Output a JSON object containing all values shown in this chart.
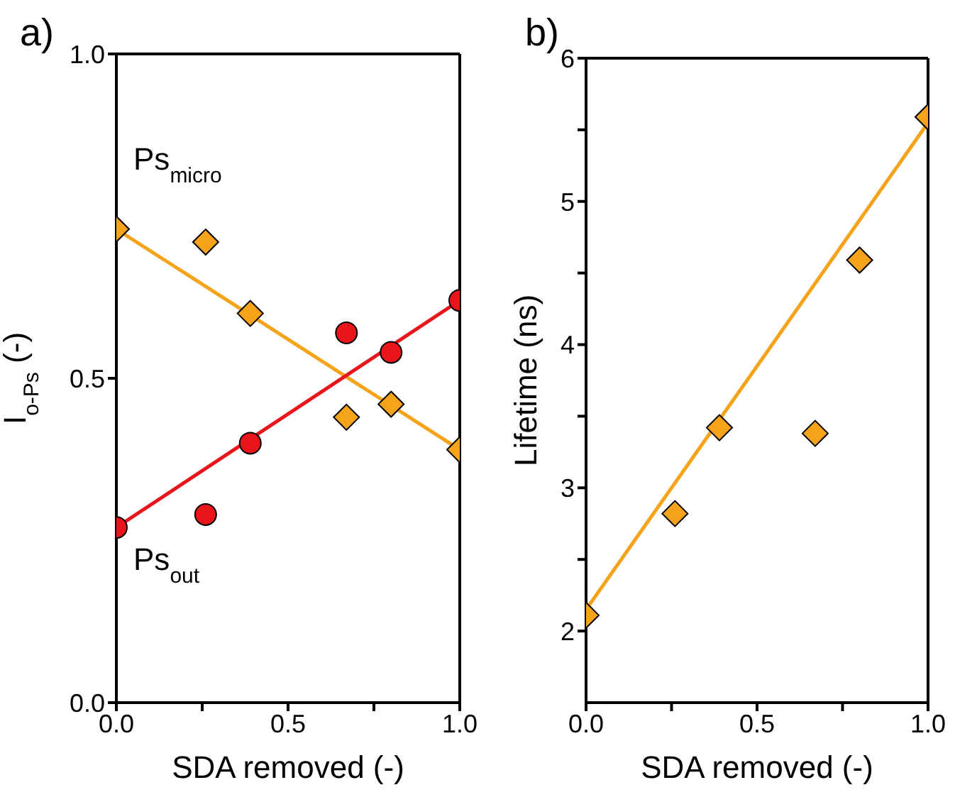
{
  "chart_data": [
    {
      "type": "scatter",
      "title": "a)",
      "xlabel": "SDA removed (-)",
      "ylabel": "I$_{o-Ps}$ (-)",
      "xlim": [
        0,
        1
      ],
      "ylim": [
        0,
        1
      ],
      "xticks": [
        {
          "value": 0,
          "label": "0.0"
        },
        {
          "value": 0.25,
          "label": null
        },
        {
          "value": 0.5,
          "label": "0.5"
        },
        {
          "value": 0.75,
          "label": null
        },
        {
          "value": 1,
          "label": "1.0"
        }
      ],
      "yticks": [
        {
          "value": 0,
          "label": "0.0"
        },
        {
          "value": 0.5,
          "label": "0.5"
        },
        {
          "value": 1,
          "label": "1.0"
        }
      ],
      "series": [
        {
          "type": "line",
          "color": "#f5a31a",
          "marker": "none",
          "x": [
            0,
            1
          ],
          "values": [
            0.73,
            0.39
          ]
        },
        {
          "type": "line",
          "color": "#e8151b",
          "marker": "none",
          "x": [
            0,
            1
          ],
          "values": [
            0.27,
            0.62
          ]
        },
        {
          "name": "Ps$_{micro}$",
          "marker": "diamond",
          "color": "#f5a31a",
          "x": [
            0,
            0.26,
            0.39,
            0.67,
            0.8,
            1.0
          ],
          "values": [
            0.73,
            0.71,
            0.6,
            0.44,
            0.46,
            0.39
          ]
        },
        {
          "name": "Ps$_{out}$",
          "marker": "circle",
          "color": "#e8151b",
          "x": [
            0,
            0.26,
            0.39,
            0.67,
            0.8,
            1.0
          ],
          "values": [
            0.27,
            0.29,
            0.4,
            0.57,
            0.54,
            0.62
          ]
        }
      ]
    },
    {
      "type": "scatter",
      "title": "b)",
      "xlabel": "SDA removed (-)",
      "ylabel": "Lifetime (ns)",
      "xlim": [
        0,
        1
      ],
      "ylim": [
        1.5,
        6
      ],
      "xticks": [
        {
          "value": 0,
          "label": "0.0"
        },
        {
          "value": 0.25,
          "label": null
        },
        {
          "value": 0.5,
          "label": "0.5"
        },
        {
          "value": 0.75,
          "label": null
        },
        {
          "value": 1,
          "label": "1.0"
        }
      ],
      "yticks": [
        2,
        {
          "value": 2.5,
          "label": null
        },
        3,
        {
          "value": 3.5,
          "label": null
        },
        4,
        {
          "value": 4.5,
          "label": null
        },
        5,
        {
          "value": 5.5,
          "label": null
        },
        6
      ],
      "series": [
        {
          "type": "line",
          "color": "#f5a31a",
          "marker": "none",
          "x": [
            0,
            1
          ],
          "values": [
            2.15,
            5.55
          ]
        },
        {
          "marker": "diamond",
          "color": "#f5a31a",
          "x": [
            0,
            0.26,
            0.39,
            0.67,
            0.8,
            1.0
          ],
          "values": [
            2.11,
            2.82,
            3.42,
            3.38,
            4.59,
            5.59
          ]
        }
      ]
    }
  ]
}
